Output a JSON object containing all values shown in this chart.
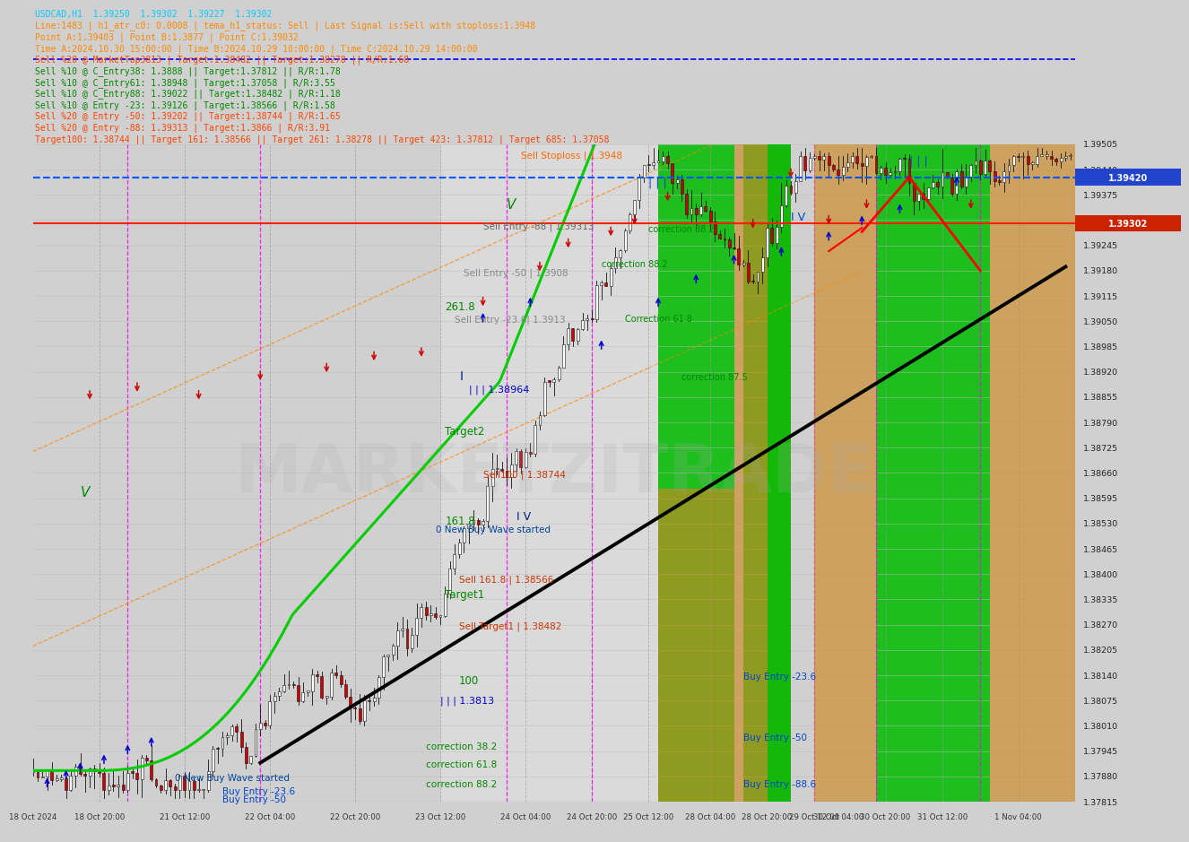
{
  "title": "USDCAD,H1  1.39250  1.39302  1.39227  1.39302",
  "info_lines": [
    "Line:1483 | h1_atr_c0: 0.0008 | tema_h1_status: Sell | Last Signal is:Sell with stoploss:1.3948",
    "Point A:1.39403 | Point B:1.3877 | Point C:1.39032",
    "Time A:2024.10.30 15:00:00 | Time B:2024.10.29 10:00:00 | Time C:2024.10.29 14:00:00",
    "Sell %20 @ MarketTop3813 | Target:1.38482 || Target:1.38278 || R/R:1.68",
    "Sell %10 @ C_Entry38: 1.3888 || Target:1.37812 || R/R:1.78",
    "Sell %10 @ C_Entry61: 1.38948 | Target:1.37058 | R/R:3.55",
    "Sell %10 @ C_Entry88: 1.39022 || Target:1.38482 | R/R:1.18",
    "Sell %10 @ Entry -23: 1.39126 | Target:1.38566 | R/R:1.58",
    "Sell %20 @ Entry -50: 1.39202 || Target:1.38744 | R/R:1.65",
    "Sell %20 @ Entry -88: 1.39313 | Target:1.3866 | R/R:3.91",
    "Target100: 1.38744 || Target 161: 1.38566 || Target 261: 1.38278 || Target 423: 1.37812 | Target 685: 1.37058"
  ],
  "y_min": 1.37815,
  "y_max": 1.39505,
  "n_bars": 220,
  "bg_color": "#d0d0d0",
  "header_bg": "#d8d8d8",
  "x_labels": [
    "18 Oct 2024",
    "18 Oct 20:00",
    "21 Oct 12:00",
    "22 Oct 04:00",
    "22 Oct 20:00",
    "23 Oct 12:00",
    "24 Oct 04:00",
    "24 Oct 20:00",
    "25 Oct 12:00",
    "28 Oct 04:00",
    "28 Oct 20:00",
    "29 Oct 12:00",
    "30 Oct 04:00",
    "30 Oct 20:00",
    "31 Oct 12:00",
    "1 Nov 04:00"
  ],
  "x_tick_bar_positions": [
    0,
    14,
    32,
    50,
    68,
    86,
    104,
    118,
    130,
    143,
    155,
    165,
    170,
    180,
    192,
    208
  ],
  "price_right_labels": [
    1.39505,
    1.3944,
    1.39375,
    1.3931,
    1.39245,
    1.3918,
    1.39115,
    1.3905,
    1.38985,
    1.3892,
    1.38855,
    1.3879,
    1.38725,
    1.3866,
    1.38595,
    1.3853,
    1.38465,
    1.384,
    1.38335,
    1.3827,
    1.38205,
    1.3814,
    1.38075,
    1.3801,
    1.37945,
    1.3788,
    1.37815
  ],
  "blue_hline": 1.3942,
  "red_hline": 1.39302,
  "watermark": "MARKETZITRADE"
}
